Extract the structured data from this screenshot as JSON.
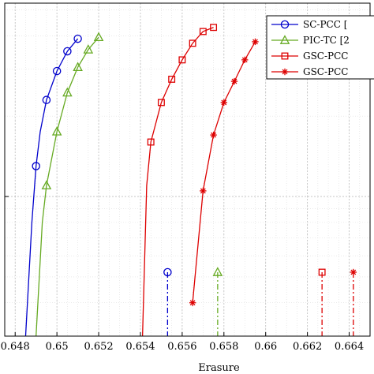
{
  "chart_data": {
    "type": "line",
    "title": "",
    "xlabel": "Erasure",
    "ylabel": "",
    "xlim": [
      0.6475,
      0.665
    ],
    "ylim": [
      0.3,
      5.3
    ],
    "y_scale": "log",
    "grid": true,
    "minor_grid": true,
    "legend_position": "top-right",
    "x_ticks": [
      0.648,
      0.65,
      0.652,
      0.654,
      0.656,
      0.658,
      0.66,
      0.662,
      0.664
    ],
    "x_tick_labels": [
      "0.648",
      "0.65",
      "0.652",
      "0.654",
      "0.656",
      "0.658",
      "0.66",
      "0.662",
      "0.664"
    ],
    "series": [
      {
        "name": "SC-PCC [",
        "color": "#0000cc",
        "marker": "circle",
        "curve_x": [
          0.6485,
          0.6488,
          0.649,
          0.6492,
          0.6495,
          0.65,
          0.6505,
          0.651
        ],
        "curve_y": [
          0.3,
          0.8,
          1.3,
          1.75,
          2.3,
          2.95,
          3.5,
          3.9
        ],
        "points_x": [
          0.649,
          0.6495,
          0.65,
          0.6505,
          0.651
        ],
        "points_y": [
          1.3,
          2.3,
          2.95,
          3.5,
          3.9
        ],
        "threshold_x": 0.6553
      },
      {
        "name": "PIC-TC [2",
        "color": "#66aa22",
        "marker": "triangle",
        "curve_x": [
          0.649,
          0.6493,
          0.6495,
          0.65,
          0.6505,
          0.651,
          0.6515,
          0.652
        ],
        "curve_y": [
          0.3,
          0.8,
          1.1,
          1.75,
          2.45,
          3.05,
          3.55,
          3.95
        ],
        "points_x": [
          0.6495,
          0.65,
          0.6505,
          0.651,
          0.6515,
          0.652
        ],
        "points_y": [
          1.1,
          1.75,
          2.45,
          3.05,
          3.55,
          3.95
        ],
        "threshold_x": 0.6577
      },
      {
        "name": "GSC-PCC",
        "color": "#dd0000",
        "marker": "square",
        "curve_x": [
          0.6541,
          0.6543,
          0.6545,
          0.655,
          0.6555,
          0.656,
          0.6565,
          0.657,
          0.6575
        ],
        "curve_y": [
          0.3,
          1.1,
          1.6,
          2.25,
          2.75,
          3.25,
          3.75,
          4.15,
          4.3
        ],
        "points_x": [
          0.6545,
          0.655,
          0.6555,
          0.656,
          0.6565,
          0.657,
          0.6575
        ],
        "points_y": [
          1.6,
          2.25,
          2.75,
          3.25,
          3.75,
          4.15,
          4.3
        ],
        "threshold_x": 0.6627
      },
      {
        "name": "GSC-PCC",
        "color": "#dd0000",
        "marker": "star",
        "curve_x": [
          0.6565,
          0.657,
          0.6575,
          0.658,
          0.6585,
          0.659,
          0.6595
        ],
        "curve_y": [
          0.4,
          1.05,
          1.7,
          2.25,
          2.7,
          3.25,
          3.8
        ],
        "points_x": [
          0.6565,
          0.657,
          0.6575,
          0.658,
          0.6585,
          0.659,
          0.6595
        ],
        "points_y": [
          0.4,
          1.05,
          1.7,
          2.25,
          2.7,
          3.25,
          3.8
        ],
        "threshold_x": 0.6642
      }
    ]
  }
}
